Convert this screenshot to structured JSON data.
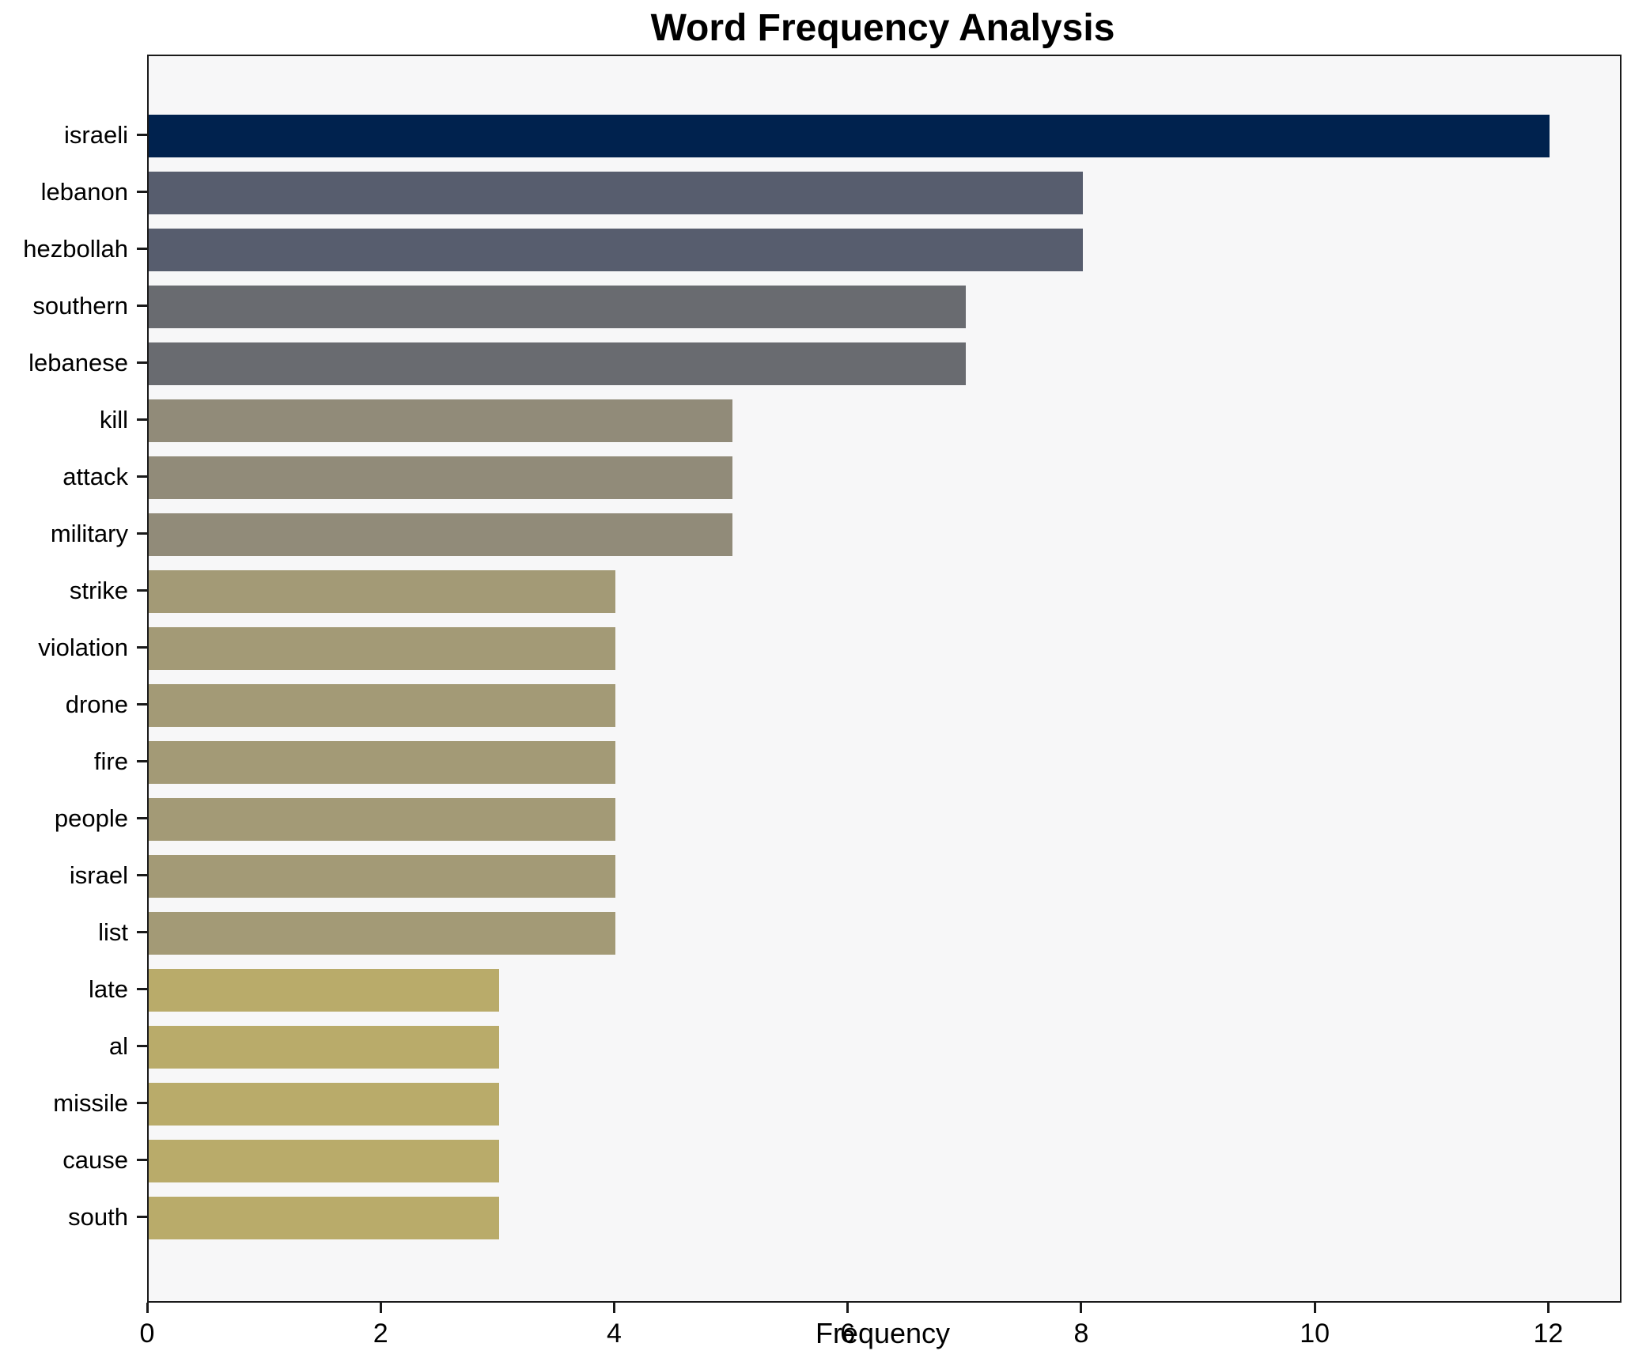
{
  "page": {
    "background": "#ffffff",
    "plot_background": "#f7f7f8",
    "spine_color": "#1a1a1a"
  },
  "chart_data": {
    "type": "bar",
    "orientation": "horizontal",
    "title": "Word Frequency Analysis",
    "xlabel": "Frequency",
    "ylabel": "",
    "categories": [
      "israeli",
      "lebanon",
      "hezbollah",
      "southern",
      "lebanese",
      "kill",
      "attack",
      "military",
      "strike",
      "violation",
      "drone",
      "fire",
      "people",
      "israel",
      "list",
      "late",
      "al",
      "missile",
      "cause",
      "south"
    ],
    "values": [
      12,
      8,
      8,
      7,
      7,
      5,
      5,
      5,
      4,
      4,
      4,
      4,
      4,
      4,
      4,
      3,
      3,
      3,
      3,
      3
    ],
    "bar_colors": [
      "#00224e",
      "#575d6e",
      "#575d6e",
      "#696b70",
      "#696b70",
      "#918b79",
      "#918b79",
      "#918b79",
      "#a39a76",
      "#a39a76",
      "#a39a76",
      "#a39a76",
      "#a39a76",
      "#a39a76",
      "#a39a76",
      "#b9ab6a",
      "#b9ab6a",
      "#b9ab6a",
      "#b9ab6a",
      "#b9ab6a"
    ],
    "x_ticks": [
      0,
      2,
      4,
      6,
      8,
      10,
      12
    ],
    "xlim": [
      0,
      12.6
    ],
    "grid": false,
    "legend": null
  }
}
